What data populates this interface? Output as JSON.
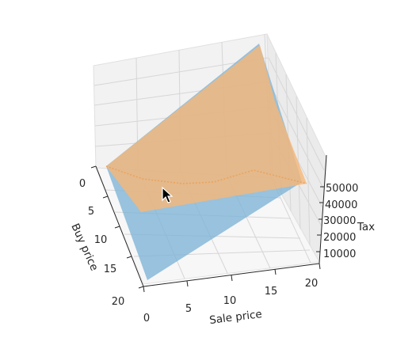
{
  "chart_data": {
    "type": "3d-surface",
    "xlabel": "Sale price",
    "ylabel": "Buy price",
    "zlabel": "Tax",
    "x_ticks": [
      "0",
      "5",
      "10",
      "15",
      "20"
    ],
    "y_ticks": [
      "0",
      "5",
      "10",
      "15",
      "20"
    ],
    "z_ticks": [
      "10000",
      "20000",
      "30000",
      "40000",
      "50000"
    ],
    "x_range": [
      0,
      20
    ],
    "y_range": [
      0,
      20
    ],
    "z_range": [
      10000,
      55000
    ],
    "grid": true,
    "series": [
      {
        "color": "#7db3d6",
        "opacity": 0.78
      },
      {
        "color": "#f7b677",
        "opacity": 0.8
      }
    ],
    "pointer": "arrow-cursor"
  }
}
